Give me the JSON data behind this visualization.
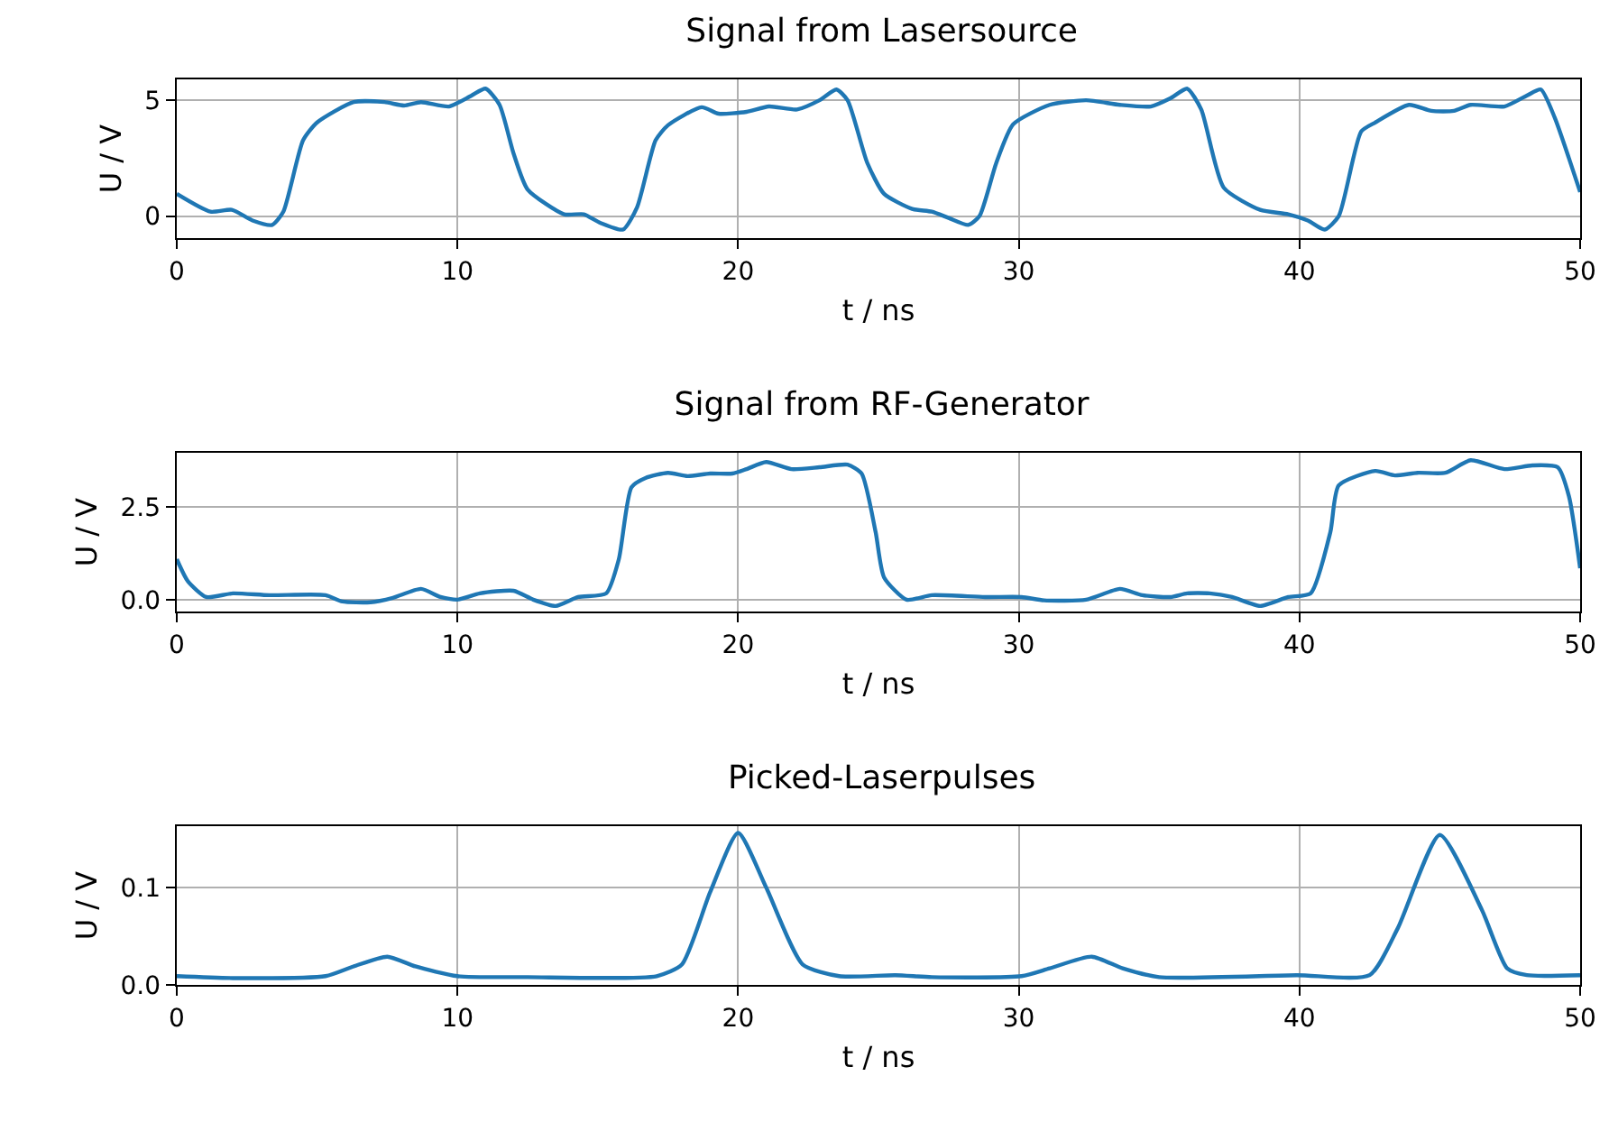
{
  "chart_data": [
    {
      "type": "line",
      "title": "Signal from Lasersource",
      "xlabel": "t / ns",
      "ylabel": "U / V",
      "xlim": [
        0,
        50
      ],
      "xticks": [
        0,
        10,
        20,
        30,
        40,
        50
      ],
      "ylim": [
        -0.95,
        5.9
      ],
      "yticks": [
        0,
        5
      ],
      "grid": true,
      "marker": "none",
      "line_style": "solid",
      "series": [
        {
          "color": "#1f77b4",
          "x": [
            0,
            1.2,
            1.96,
            2.7,
            3.4,
            3.8,
            4.5,
            5,
            6.3,
            7.4,
            8.1,
            8.7,
            9.7,
            10.5,
            11,
            11.5,
            12,
            12.5,
            13.8,
            14.5,
            15.1,
            15.9,
            16.4,
            17.06,
            17.5,
            18.7,
            19.3,
            20.3,
            21.1,
            22.1,
            22.9,
            23.5,
            23.9,
            24.6,
            25.2,
            26.2,
            26.9,
            27.5,
            28.2,
            28.6,
            29.2,
            29.8,
            31.1,
            32.4,
            33.6,
            34.7,
            35.4,
            36,
            36.5,
            37.3,
            38.6,
            39.6,
            40.3,
            40.9,
            41.4,
            42.2,
            42.7,
            43.9,
            44.7,
            45.5,
            46.1,
            47.3,
            48.1,
            48.6,
            49.1,
            49.6,
            50
          ],
          "values": [
            0.96,
            0.19,
            0.27,
            -0.19,
            -0.38,
            0.2,
            3.27,
            4.04,
            4.92,
            4.92,
            4.77,
            4.92,
            4.73,
            5.2,
            5.5,
            4.8,
            2.7,
            1.15,
            0.08,
            0.08,
            -0.3,
            -0.58,
            0.38,
            3.27,
            3.92,
            4.7,
            4.42,
            4.5,
            4.73,
            4.6,
            5.0,
            5.46,
            5.0,
            2.3,
            0.96,
            0.31,
            0.19,
            -0.08,
            -0.38,
            0,
            2.3,
            3.96,
            4.8,
            5.0,
            4.8,
            4.73,
            5.08,
            5.5,
            4.6,
            1.23,
            0.27,
            0.08,
            -0.19,
            -0.58,
            0,
            3.65,
            4.04,
            4.8,
            4.54,
            4.54,
            4.8,
            4.73,
            5.2,
            5.46,
            4.23,
            2.5,
            1.04
          ]
        }
      ]
    },
    {
      "type": "line",
      "title": "Signal from RF-Generator",
      "xlabel": "t / ns",
      "ylabel": "U / V",
      "xlim": [
        0,
        50
      ],
      "xticks": [
        0,
        10,
        20,
        30,
        40,
        50
      ],
      "ylim": [
        -0.32,
        3.96
      ],
      "yticks": [
        {
          "value": 0,
          "label": "0.0"
        },
        2.5
      ],
      "grid": true,
      "marker": "none",
      "line_style": "solid",
      "series": [
        {
          "color": "#1f77b4",
          "x": [
            0,
            0.4,
            1.05,
            2,
            3.3,
            5.3,
            5.9,
            6.9,
            7.7,
            8.7,
            9.4,
            10,
            10.8,
            12,
            12.7,
            13.5,
            14.3,
            15.3,
            15.75,
            16.2,
            16.7,
            17.5,
            18.2,
            19,
            19.8,
            20.3,
            21,
            21.9,
            22.9,
            23.9,
            24.4,
            24.9,
            25.2,
            26,
            26.9,
            28.8,
            30.1,
            30.9,
            32.4,
            33.6,
            34.4,
            35.4,
            36,
            36.8,
            37.6,
            38.6,
            39.6,
            40.4,
            41.1,
            41.4,
            42.7,
            43.4,
            44.2,
            45.2,
            46.1,
            47.3,
            48.3,
            49.2,
            49.6,
            50
          ],
          "values": [
            1.09,
            0.49,
            0.07,
            0.17,
            0.12,
            0.12,
            -0.05,
            -0.07,
            0.05,
            0.29,
            0.07,
            0,
            0.17,
            0.24,
            0,
            -0.17,
            0.07,
            0.17,
            1.09,
            3.03,
            3.28,
            3.42,
            3.33,
            3.4,
            3.4,
            3.52,
            3.71,
            3.52,
            3.57,
            3.64,
            3.4,
            1.82,
            0.6,
            0,
            0.12,
            0.07,
            0.07,
            -0.02,
            0,
            0.29,
            0.12,
            0.07,
            0.17,
            0.17,
            0.07,
            -0.17,
            0.07,
            0.17,
            1.82,
            3.08,
            3.47,
            3.35,
            3.42,
            3.42,
            3.76,
            3.52,
            3.62,
            3.57,
            2.79,
            0.85
          ]
        }
      ]
    },
    {
      "type": "line",
      "title": "Picked-Laserpulses",
      "xlabel": "t / ns",
      "ylabel": "U / V",
      "xlim": [
        0,
        50
      ],
      "xticks": [
        0,
        10,
        20,
        30,
        40,
        50
      ],
      "ylim": [
        0,
        0.163
      ],
      "yticks": [
        {
          "value": 0,
          "label": "0.0"
        },
        0.1
      ],
      "grid": true,
      "marker": "none",
      "line_style": "solid",
      "series": [
        {
          "color": "#1f77b4",
          "x": [
            0,
            2,
            5.3,
            6.3,
            7.5,
            8.5,
            10,
            12.5,
            17.1,
            18,
            19,
            20,
            21,
            22.3,
            23.6,
            25.6,
            26.9,
            30.1,
            31.1,
            32.6,
            33.7,
            35,
            39.9,
            42.5,
            43.5,
            45,
            46.5,
            47.4,
            48.1,
            50
          ],
          "values": [
            0.009,
            0.007,
            0.009,
            0.019,
            0.029,
            0.019,
            0.009,
            0.008,
            0.009,
            0.021,
            0.095,
            0.156,
            0.1,
            0.021,
            0.009,
            0.01,
            0.008,
            0.009,
            0.017,
            0.029,
            0.017,
            0.008,
            0.01,
            0.01,
            0.058,
            0.154,
            0.077,
            0.017,
            0.01,
            0.01
          ]
        }
      ]
    }
  ]
}
